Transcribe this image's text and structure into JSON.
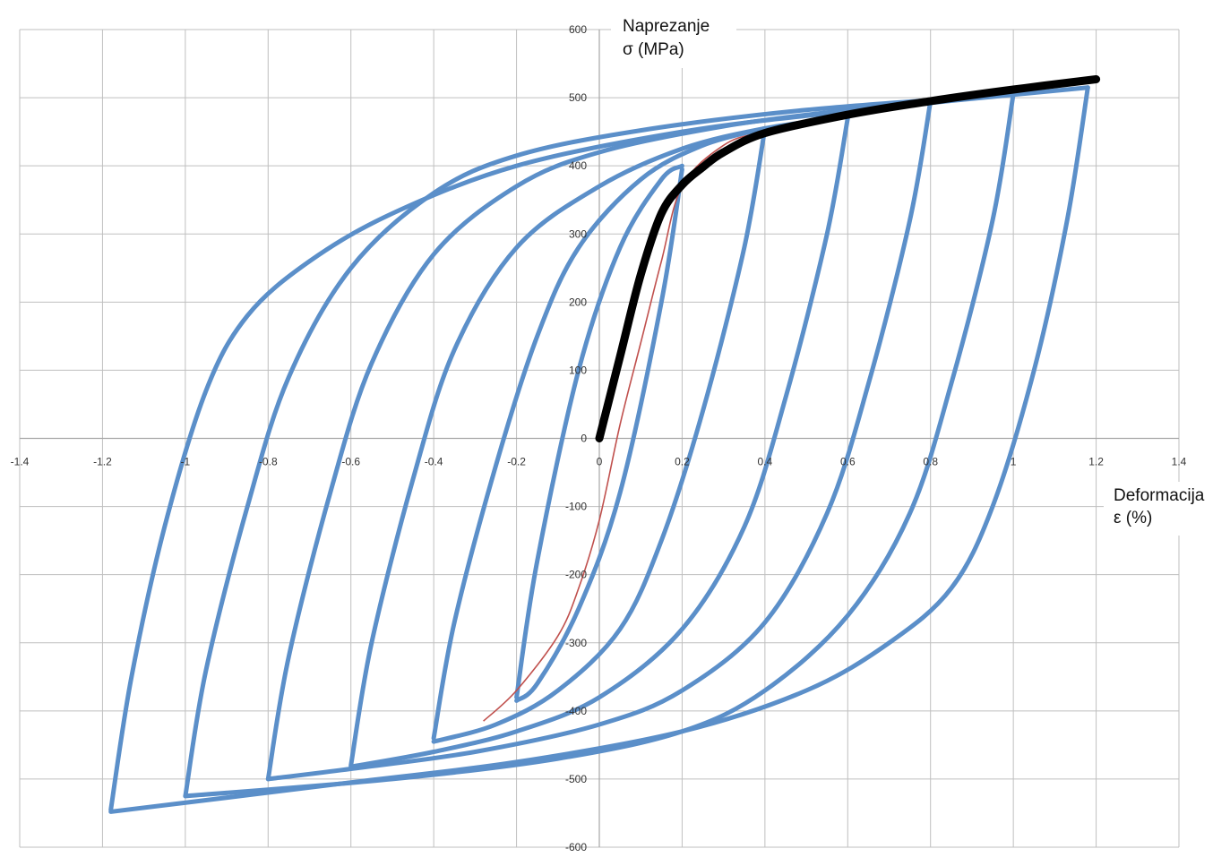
{
  "chart_data": {
    "type": "line",
    "title": "",
    "xlabel_line1": "Deformacija",
    "xlabel_line2": "ε   (%)",
    "ylabel_line1": "Naprezanje",
    "ylabel_line2": "σ   (MPa)",
    "xlim": [
      -1.4,
      1.4
    ],
    "ylim": [
      -600,
      600
    ],
    "xticks": [
      -1.4,
      -1.2,
      -1,
      -0.8,
      -0.6,
      -0.4,
      -0.2,
      0,
      0.2,
      0.4,
      0.6,
      0.8,
      1,
      1.2,
      1.4
    ],
    "xtick_labels": [
      "-1.4",
      "-1.2",
      "-1",
      "-0.8",
      "-0.6",
      "-0.4",
      "-0.2",
      "0",
      "0.2",
      "0.4",
      "0.6",
      "0.8",
      "1",
      "1.2",
      "1.4"
    ],
    "yticks": [
      -600,
      -500,
      -400,
      -300,
      -200,
      -100,
      0,
      100,
      200,
      300,
      400,
      500,
      600
    ],
    "ytick_labels": [
      "-600",
      "-500",
      "-400",
      "-300",
      "-200",
      "-100",
      "0",
      "100",
      "200",
      "300",
      "400",
      "500",
      "600"
    ],
    "grid": true,
    "legend": "none",
    "colors": {
      "loops": "#5b8fc9",
      "monotonic": "#000000",
      "cyclic_curve": "#c0504d",
      "grid": "#bfbfbf"
    },
    "series": [
      {
        "role": "hysteresis-loop",
        "amplitude": 0.2,
        "lower_tip": [
          -0.19,
          -380
        ],
        "upper_tip": [
          0.19,
          390
        ],
        "upper_branch": [
          [
            -0.2,
            -380
          ],
          [
            -0.15,
            -180
          ],
          [
            -0.05,
            100
          ],
          [
            0.05,
            280
          ],
          [
            0.15,
            380
          ],
          [
            0.2,
            400
          ]
        ],
        "lower_branch": [
          [
            0.2,
            395
          ],
          [
            0.15,
            200
          ],
          [
            0.05,
            -80
          ],
          [
            -0.05,
            -250
          ],
          [
            -0.15,
            -360
          ],
          [
            -0.2,
            -385
          ]
        ]
      },
      {
        "role": "hysteresis-loop",
        "amplitude": 0.4,
        "lower_tip": [
          -0.4,
          -440
        ],
        "upper_tip": [
          0.4,
          455
        ],
        "upper_branch": [
          [
            -0.4,
            -440
          ],
          [
            -0.35,
            -270
          ],
          [
            -0.25,
            -40
          ],
          [
            -0.15,
            150
          ],
          [
            -0.05,
            280
          ],
          [
            0.1,
            380
          ],
          [
            0.25,
            430
          ],
          [
            0.4,
            455
          ]
        ],
        "lower_branch": [
          [
            0.4,
            455
          ],
          [
            0.35,
            280
          ],
          [
            0.25,
            40
          ],
          [
            0.15,
            -150
          ],
          [
            0.05,
            -280
          ],
          [
            -0.1,
            -370
          ],
          [
            -0.25,
            -420
          ],
          [
            -0.4,
            -445
          ]
        ]
      },
      {
        "role": "hysteresis-loop",
        "amplitude": 0.6,
        "lower_tip": [
          -0.59,
          -480
        ],
        "upper_tip": [
          0.59,
          470
        ],
        "upper_branch": [
          [
            -0.6,
            -480
          ],
          [
            -0.55,
            -300
          ],
          [
            -0.45,
            -60
          ],
          [
            -0.35,
            130
          ],
          [
            -0.2,
            280
          ],
          [
            0,
            370
          ],
          [
            0.2,
            425
          ],
          [
            0.4,
            455
          ],
          [
            0.6,
            472
          ]
        ],
        "lower_branch": [
          [
            0.6,
            470
          ],
          [
            0.55,
            300
          ],
          [
            0.45,
            60
          ],
          [
            0.35,
            -130
          ],
          [
            0.2,
            -280
          ],
          [
            0,
            -380
          ],
          [
            -0.2,
            -430
          ],
          [
            -0.4,
            -460
          ],
          [
            -0.6,
            -482
          ]
        ]
      },
      {
        "role": "hysteresis-loop",
        "amplitude": 0.8,
        "lower_tip": [
          -0.79,
          -500
        ],
        "upper_tip": [
          0.8,
          495
        ],
        "upper_branch": [
          [
            -0.8,
            -500
          ],
          [
            -0.75,
            -320
          ],
          [
            -0.65,
            -80
          ],
          [
            -0.55,
            110
          ],
          [
            -0.4,
            270
          ],
          [
            -0.2,
            370
          ],
          [
            0,
            420
          ],
          [
            0.3,
            458
          ],
          [
            0.6,
            482
          ],
          [
            0.8,
            495
          ]
        ],
        "lower_branch": [
          [
            0.8,
            495
          ],
          [
            0.75,
            320
          ],
          [
            0.65,
            80
          ],
          [
            0.55,
            -110
          ],
          [
            0.4,
            -270
          ],
          [
            0.2,
            -370
          ],
          [
            0,
            -420
          ],
          [
            -0.3,
            -460
          ],
          [
            -0.6,
            -485
          ],
          [
            -0.8,
            -500
          ]
        ]
      },
      {
        "role": "hysteresis-loop",
        "amplitude": 1.0,
        "lower_tip": [
          -0.99,
          -525
        ],
        "upper_tip": [
          0.99,
          505
        ],
        "upper_branch": [
          [
            -1.0,
            -525
          ],
          [
            -0.95,
            -340
          ],
          [
            -0.85,
            -100
          ],
          [
            -0.75,
            90
          ],
          [
            -0.6,
            250
          ],
          [
            -0.4,
            360
          ],
          [
            -0.2,
            415
          ],
          [
            0.1,
            452
          ],
          [
            0.5,
            482
          ],
          [
            1.0,
            505
          ]
        ],
        "lower_branch": [
          [
            1.0,
            505
          ],
          [
            0.95,
            320
          ],
          [
            0.85,
            80
          ],
          [
            0.75,
            -110
          ],
          [
            0.6,
            -260
          ],
          [
            0.4,
            -370
          ],
          [
            0.2,
            -430
          ],
          [
            -0.1,
            -470
          ],
          [
            -0.5,
            -500
          ],
          [
            -1.0,
            -525
          ]
        ]
      },
      {
        "role": "hysteresis-loop",
        "amplitude": 1.2,
        "lower_tip": [
          -1.18,
          -545
        ],
        "upper_tip": [
          1.18,
          515
        ],
        "upper_branch": [
          [
            -1.18,
            -545
          ],
          [
            -1.13,
            -350
          ],
          [
            -1.05,
            -130
          ],
          [
            -0.95,
            70
          ],
          [
            -0.85,
            180
          ],
          [
            -0.7,
            260
          ],
          [
            -0.5,
            330
          ],
          [
            -0.2,
            400
          ],
          [
            0.2,
            450
          ],
          [
            0.6,
            480
          ],
          [
            1.18,
            515
          ]
        ],
        "lower_branch": [
          [
            1.18,
            515
          ],
          [
            1.13,
            320
          ],
          [
            1.05,
            100
          ],
          [
            0.95,
            -100
          ],
          [
            0.85,
            -220
          ],
          [
            0.7,
            -300
          ],
          [
            0.5,
            -370
          ],
          [
            0.2,
            -430
          ],
          [
            -0.2,
            -475
          ],
          [
            -0.6,
            -505
          ],
          [
            -1.18,
            -548
          ]
        ]
      },
      {
        "role": "monotonic-curve",
        "points": [
          [
            0,
            0
          ],
          [
            0.05,
            120
          ],
          [
            0.1,
            240
          ],
          [
            0.15,
            330
          ],
          [
            0.2,
            372
          ],
          [
            0.25,
            398
          ],
          [
            0.3,
            420
          ],
          [
            0.4,
            448
          ],
          [
            0.6,
            475
          ],
          [
            0.8,
            495
          ],
          [
            1.0,
            512
          ],
          [
            1.2,
            527
          ]
        ]
      },
      {
        "role": "cyclic-stress-strain-curve",
        "points": [
          [
            -0.28,
            -415
          ],
          [
            -0.2,
            -370
          ],
          [
            -0.1,
            -290
          ],
          [
            -0.05,
            -220
          ],
          [
            0,
            -120
          ],
          [
            0.05,
            20
          ],
          [
            0.1,
            140
          ],
          [
            0.15,
            260
          ],
          [
            0.2,
            370
          ],
          [
            0.3,
            430
          ],
          [
            0.4,
            450
          ],
          [
            0.6,
            472
          ],
          [
            0.8,
            495
          ],
          [
            1.0,
            515
          ]
        ]
      }
    ]
  }
}
